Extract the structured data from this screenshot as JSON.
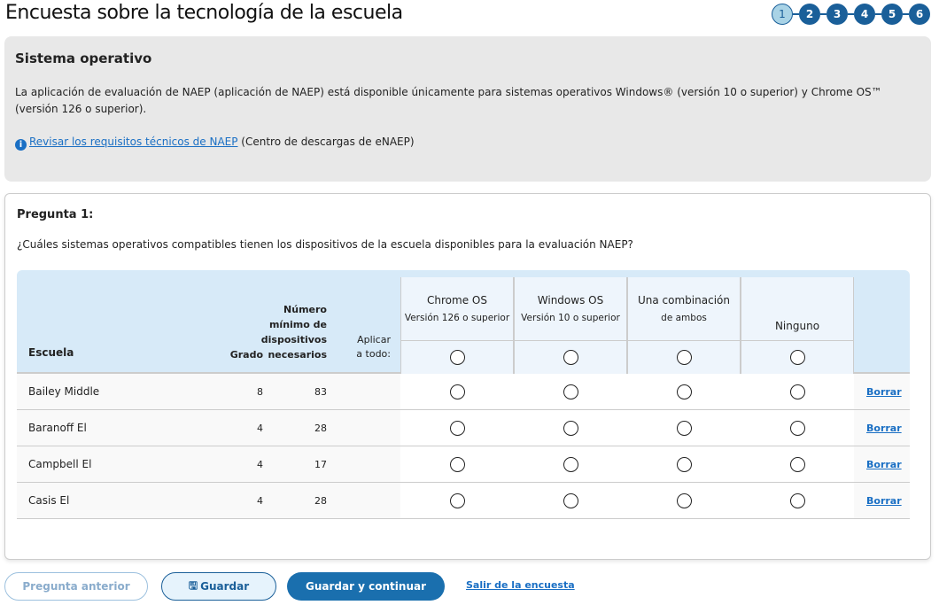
{
  "title": "Encuesta sobre la tecnología de la escuela",
  "steps": [
    "1",
    "2",
    "3",
    "4",
    "5",
    "6"
  ],
  "current_step": 1,
  "info": {
    "heading": "Sistema operativo",
    "text": "La aplicación de evaluación de NAEP (aplicación de NAEP) está disponible únicamente para sistemas operativos Windows® (versión 10 o superior) y Chrome OS™ (versión 126 o superior).",
    "link": "Revisar los requisitos técnicos de NAEP",
    "link_suffix": " (Centro de descargas de eNAEP)",
    "icon": "info-icon"
  },
  "question": {
    "label": "Pregunta 1:",
    "text": "¿Cuáles sistemas operativos compatibles tienen los dispositivos de la escuela disponibles para la evaluación NAEP?"
  },
  "table": {
    "headers": {
      "school": "Escuela",
      "grade": "Grado",
      "min_devices": [
        "Número",
        "mínimo de",
        "dispositivos",
        "necesarios"
      ],
      "apply_all": [
        "Aplicar",
        "a todo:"
      ]
    },
    "options": [
      {
        "title": "Chrome OS",
        "sub": "Versión 126 o superior"
      },
      {
        "title": "Windows OS",
        "sub": "Versión 10 o superior"
      },
      {
        "title": "Una combinación",
        "sub": "de ambos"
      },
      {
        "title": "",
        "sub": "Ninguno"
      }
    ],
    "rows": [
      {
        "school": "Bailey Middle",
        "grade": "8",
        "devices": "83"
      },
      {
        "school": "Baranoff El",
        "grade": "4",
        "devices": "28"
      },
      {
        "school": "Campbell El",
        "grade": "4",
        "devices": "17"
      },
      {
        "school": "Casis El",
        "grade": "4",
        "devices": "28"
      }
    ],
    "clear_label": "Borrar"
  },
  "buttons": {
    "previous": "Pregunta anterior",
    "save": "Guardar",
    "save_continue": "Guardar y continuar",
    "exit": "Salir de la encuesta"
  }
}
